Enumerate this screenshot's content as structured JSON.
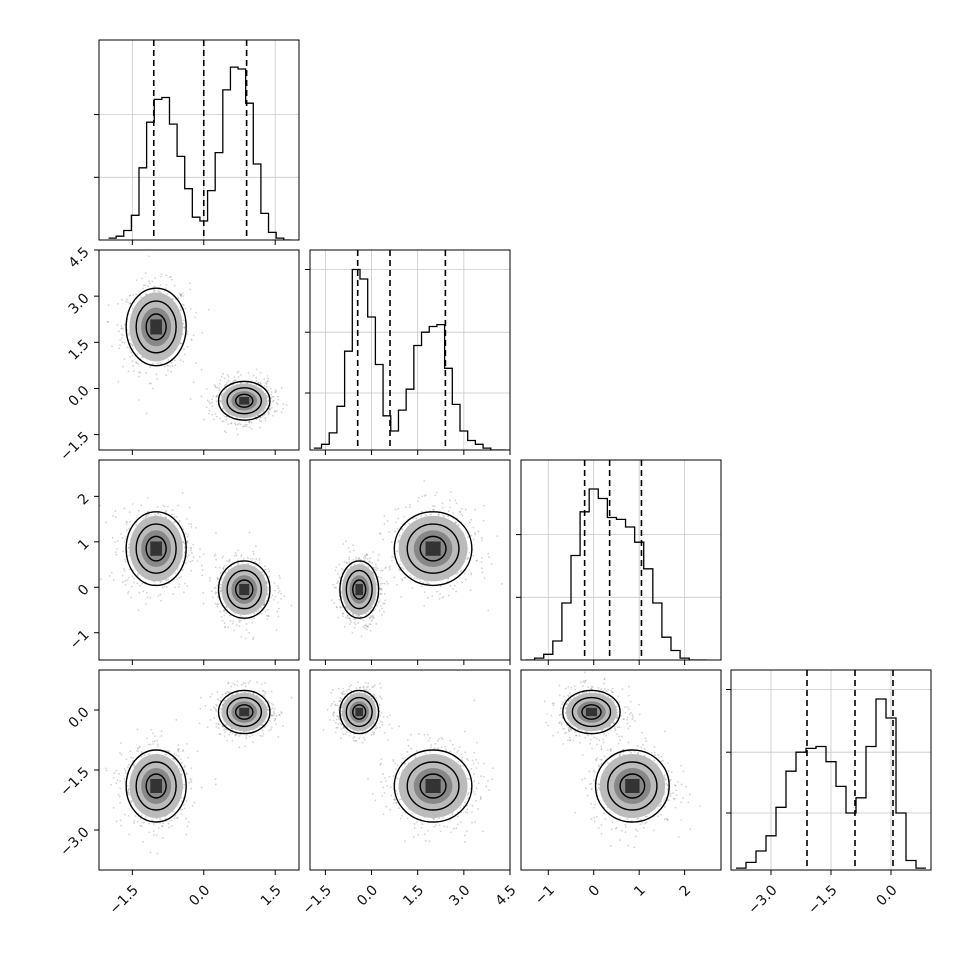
{
  "chart_data": {
    "type": "corner",
    "title": "",
    "colors": {
      "line": "#000000",
      "scatter": "#808080",
      "grid": "#c8c8c8",
      "frame": "#000000"
    },
    "grid": true,
    "dimensions": [
      {
        "range": [
          -2.2,
          2.0
        ],
        "ticks": [
          -1.5,
          0.0,
          1.5
        ],
        "tick_labels": [
          "−1.5",
          "0.0",
          "1.5"
        ],
        "quantiles": [
          -1.05,
          0.0,
          0.9
        ],
        "hist_y_max": 1.0,
        "hist_ticks": [
          0.33,
          0.66
        ],
        "hist_bin_centers": [
          -1.92,
          -1.76,
          -1.6,
          -1.44,
          -1.28,
          -1.12,
          -0.96,
          -0.8,
          -0.64,
          -0.48,
          -0.32,
          -0.16,
          0.0,
          0.16,
          0.32,
          0.48,
          0.64,
          0.8,
          0.96,
          1.12,
          1.28,
          1.44,
          1.6,
          1.76
        ],
        "hist_values": [
          0.01,
          0.02,
          0.05,
          0.13,
          0.38,
          0.62,
          0.74,
          0.75,
          0.61,
          0.44,
          0.27,
          0.12,
          0.1,
          0.26,
          0.46,
          0.79,
          0.91,
          0.9,
          0.72,
          0.4,
          0.14,
          0.04,
          0.01,
          0.0
        ]
      },
      {
        "range": [
          -2.0,
          4.5
        ],
        "ticks": [
          -1.5,
          0.0,
          1.5,
          3.0,
          4.5
        ],
        "tick_labels": [
          "−1.5",
          "0.0",
          "1.5",
          "3.0",
          "4.5"
        ],
        "quantiles": [
          -0.45,
          0.6,
          2.4
        ],
        "hist_y_max": 1.0,
        "hist_ticks": [
          0.3,
          0.62,
          0.95
        ],
        "hist_bin_centers": [
          -1.75,
          -1.5,
          -1.25,
          -1.0,
          -0.75,
          -0.5,
          -0.25,
          0.0,
          0.25,
          0.5,
          0.75,
          1.0,
          1.25,
          1.5,
          1.75,
          2.0,
          2.25,
          2.5,
          2.75,
          3.0,
          3.25,
          3.5,
          3.75,
          4.0,
          4.25
        ],
        "hist_values": [
          0.01,
          0.03,
          0.09,
          0.23,
          0.52,
          0.95,
          0.9,
          0.7,
          0.45,
          0.18,
          0.1,
          0.21,
          0.32,
          0.55,
          0.62,
          0.65,
          0.66,
          0.43,
          0.24,
          0.1,
          0.05,
          0.03,
          0.01,
          0.0,
          0.0
        ]
      },
      {
        "range": [
          -1.6,
          2.8
        ],
        "ticks": [
          -1,
          0,
          1,
          2
        ],
        "tick_labels": [
          "−1",
          "0",
          "1",
          "2"
        ],
        "quantiles": [
          -0.2,
          0.35,
          1.05
        ],
        "hist_y_max": 1.0,
        "hist_ticks": [
          0.33,
          0.66
        ],
        "hist_bin_centers": [
          -1.4,
          -1.2,
          -1.0,
          -0.8,
          -0.6,
          -0.4,
          -0.2,
          0.0,
          0.2,
          0.4,
          0.6,
          0.8,
          1.0,
          1.2,
          1.4,
          1.6,
          1.8,
          2.0,
          2.2,
          2.4
        ],
        "hist_values": [
          0.0,
          0.01,
          0.03,
          0.1,
          0.3,
          0.55,
          0.78,
          0.9,
          0.85,
          0.75,
          0.74,
          0.7,
          0.62,
          0.48,
          0.3,
          0.12,
          0.05,
          0.01,
          0.0,
          0.0
        ]
      },
      {
        "range": [
          -4.0,
          1.0
        ],
        "ticks": [
          -3.0,
          -1.5,
          0.0
        ],
        "tick_labels": [
          "−3.0",
          "−1.5",
          "0.0"
        ],
        "quantiles": [
          -2.1,
          -0.9,
          0.05
        ],
        "hist_y_max": 1.0,
        "hist_ticks": [
          0.3,
          0.62,
          0.95
        ],
        "hist_bin_centers": [
          -3.75,
          -3.5,
          -3.25,
          -3.0,
          -2.75,
          -2.5,
          -2.25,
          -2.0,
          -1.75,
          -1.5,
          -1.25,
          -1.0,
          -0.75,
          -0.5,
          -0.25,
          0.0,
          0.25,
          0.5,
          0.75
        ],
        "hist_values": [
          0.01,
          0.04,
          0.1,
          0.18,
          0.33,
          0.52,
          0.62,
          0.64,
          0.65,
          0.57,
          0.44,
          0.3,
          0.38,
          0.65,
          0.9,
          0.8,
          0.3,
          0.05,
          0.01
        ]
      }
    ],
    "modes": [
      {
        "center": [
          -1.0,
          2.0,
          0.85,
          -1.9
        ],
        "sigma": [
          0.35,
          0.7,
          0.45,
          0.5
        ],
        "weight": 0.5
      },
      {
        "center": [
          0.85,
          -0.4,
          -0.05,
          -0.05
        ],
        "sigma": [
          0.3,
          0.35,
          0.35,
          0.3
        ],
        "weight": 0.5
      }
    ],
    "contour_levels_sigma": [
      0.6,
      1.2,
      1.8
    ]
  }
}
